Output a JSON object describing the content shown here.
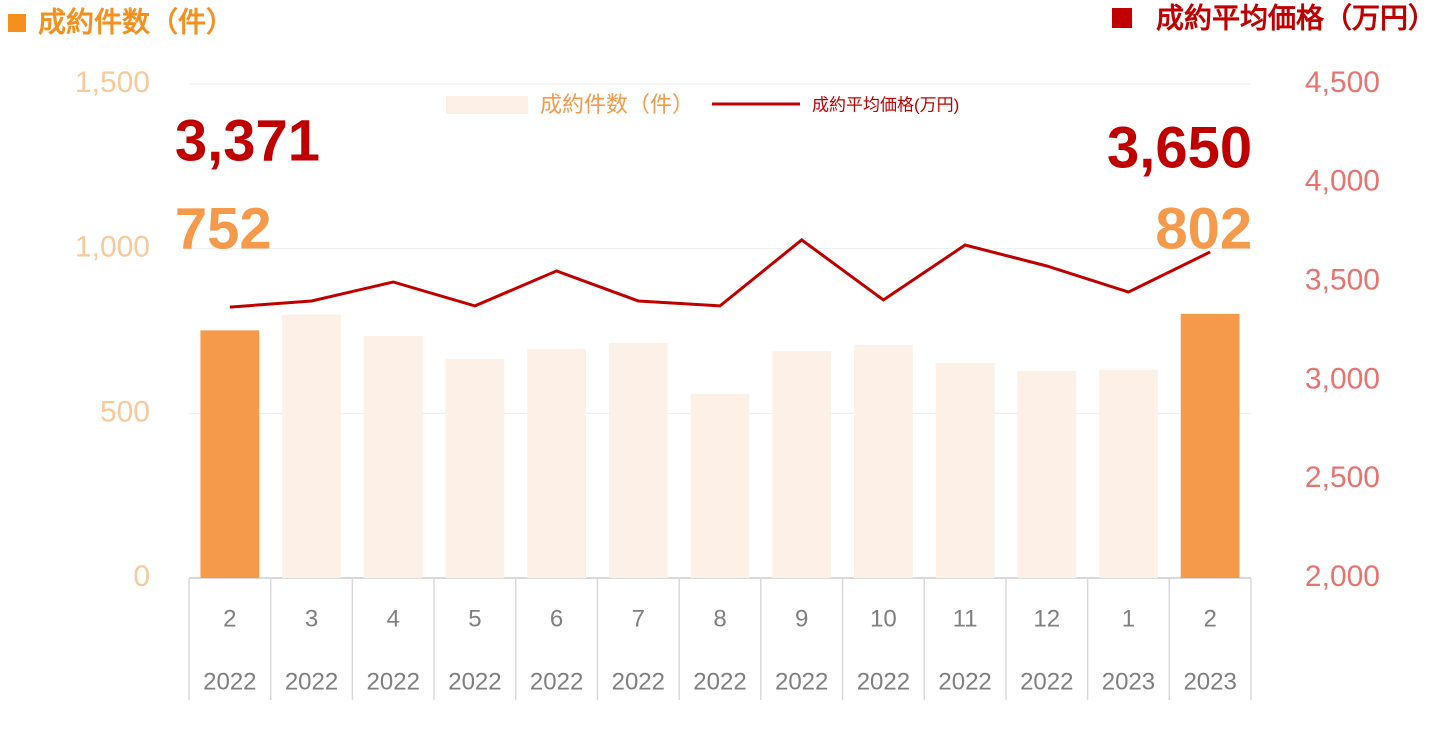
{
  "chart_data": {
    "type": "bar-line",
    "y_label": "成約件数（件）",
    "y2_label": "成約平均価格（万円）",
    "categories": [
      "2",
      "3",
      "4",
      "5",
      "6",
      "7",
      "8",
      "9",
      "10",
      "11",
      "12",
      "1",
      "2"
    ],
    "years": [
      "2022",
      "2022",
      "2022",
      "2022",
      "2022",
      "2022",
      "2022",
      "2022",
      "2022",
      "2022",
      "2022",
      "2023",
      "2023"
    ],
    "series": [
      {
        "name": "成約件数（件）",
        "type": "bar",
        "color": "#FDF1E7",
        "highlight_color": "#F5994A",
        "highlight": [
          0,
          12
        ],
        "values": [
          752,
          800,
          735,
          665,
          695,
          714,
          559,
          689,
          708,
          653,
          629,
          632,
          802
        ],
        "value_labels": [
          "752",
          null,
          null,
          null,
          null,
          null,
          null,
          null,
          null,
          null,
          null,
          null,
          "802"
        ]
      },
      {
        "name": "成約平均価格(万円)",
        "type": "line",
        "axis": "y2",
        "color": "#C00000",
        "values": [
          3371,
          3402,
          3498,
          3377,
          3554,
          3402,
          3377,
          3711,
          3407,
          3685,
          3579,
          3447,
          3650
        ],
        "value_labels": [
          "3,371",
          null,
          null,
          null,
          null,
          null,
          null,
          null,
          null,
          null,
          null,
          null,
          "3,650"
        ]
      }
    ],
    "ylim": [
      0,
      1500
    ],
    "yticks": [
      0,
      500,
      {
        "value": 1000,
        "label": "1,000"
      },
      {
        "value": 1500,
        "label": "1,500"
      }
    ],
    "y2lim": [
      2000,
      4500
    ],
    "y2ticks": [
      {
        "value": 2000,
        "label": "2,000"
      },
      {
        "value": 2500,
        "label": "2,500"
      },
      {
        "value": 3000,
        "label": "3,000"
      },
      {
        "value": 3500,
        "label": "3,500"
      },
      {
        "value": 4000,
        "label": "4,000"
      },
      {
        "value": 4500,
        "label": "4,500"
      }
    ],
    "grid": true,
    "legend": "top"
  }
}
